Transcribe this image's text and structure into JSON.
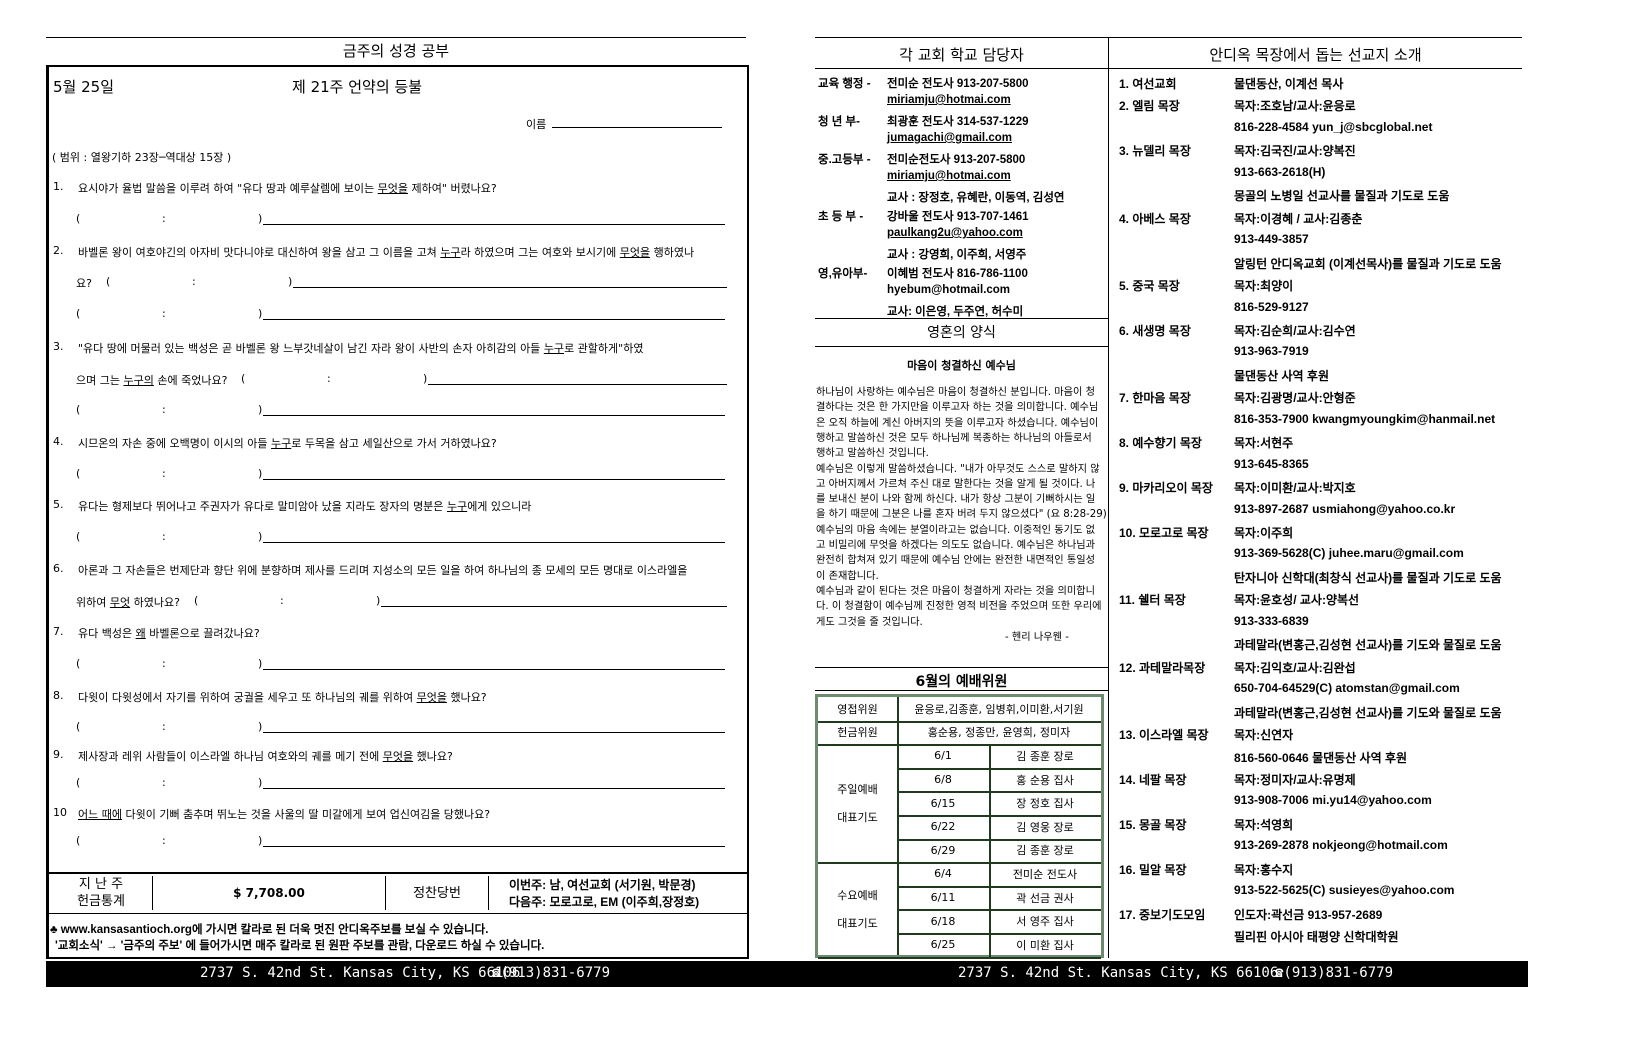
{
  "left": {
    "section_title": "금주의 성경 공부",
    "date": "5월 25일",
    "lesson_title": "제 21주 언약의 등불",
    "name_label": "이름",
    "scope": "( 범위 : 열왕기하 23장─역대상 15장 )",
    "answer": {
      "open": "(",
      "colon": ":",
      "close": ")"
    },
    "questions": [
      {
        "num": "1.",
        "lines": [
          {
            "segs": [
              [
                "요시야가 율법 말씀을 이루려 하여 \"유다 땅과 예루살렘에 보이는 ",
                false
              ],
              [
                "무엇을",
                true
              ],
              [
                " 제하여\" 버렸나요?",
                false
              ]
            ]
          }
        ],
        "answer_lines": 1
      },
      {
        "num": "2.",
        "lines": [
          {
            "segs": [
              [
                "바벨론 왕이 여호야긴의 아자비 맛다니야로 대신하여 왕을 삼고 그 이름을 고쳐 ",
                false
              ],
              [
                "누구",
                true
              ],
              [
                "라 하였으며 그는 여호와 보시기에 ",
                false
              ],
              [
                "무엇을",
                true
              ],
              [
                "  행하였나",
                false
              ]
            ]
          },
          {
            "segs": [
              [
                "요?",
                false
              ]
            ],
            "inline": true
          }
        ],
        "answer_lines": 1
      },
      {
        "num": "3.",
        "lines": [
          {
            "segs": [
              [
                "\"유다 땅에 머물러 있는 백성은 곧 바벨론 왕 느부갓네살이 남긴 자라 왕이 사반의 손자 아히감의 아들 ",
                false
              ],
              [
                "누구",
                true
              ],
              [
                "로 관할하게\"하였",
                false
              ]
            ]
          },
          {
            "segs": [
              [
                "으며 그는 ",
                false
              ],
              [
                "누구의",
                true
              ],
              [
                " 손에 죽었나요?",
                false
              ]
            ],
            "inline": true
          }
        ],
        "answer_lines": 1
      },
      {
        "num": "4.",
        "lines": [
          {
            "segs": [
              [
                "시므온의 자손 중에 오백명이 이시의 아들 ",
                false
              ],
              [
                "누구",
                true
              ],
              [
                "로 두목을 삼고 세일산으로 가서 거하였나요?",
                false
              ]
            ]
          }
        ],
        "answer_lines": 1
      },
      {
        "num": "5.",
        "lines": [
          {
            "segs": [
              [
                "유다는 형제보다 뛰어나고 주권자가 유다로 말미암아 났을 지라도 장자의 명분은 ",
                false
              ],
              [
                "누구",
                true
              ],
              [
                "에게 있으니라",
                false
              ]
            ]
          }
        ],
        "answer_lines": 1
      },
      {
        "num": "6.",
        "lines": [
          {
            "segs": [
              [
                "아론과 그 자손들은 번제단과 향단 위에 분향하며 제사를 드리며 지성소의 모든 일을 하여 하나님의 종 모세의 모든 명대로 이스라엘을",
                false
              ]
            ]
          },
          {
            "segs": [
              [
                "위하여 ",
                false
              ],
              [
                "무엇",
                true
              ],
              [
                " 하였나요?",
                false
              ]
            ],
            "inline": true
          }
        ],
        "answer_lines": 0
      },
      {
        "num": "7.",
        "lines": [
          {
            "segs": [
              [
                "유다 백성은 ",
                false
              ],
              [
                "왜",
                true
              ],
              [
                " 바벨론으로 끌려갔나요?",
                false
              ]
            ]
          }
        ],
        "answer_lines": 1
      },
      {
        "num": "8.",
        "lines": [
          {
            "segs": [
              [
                "다윗이 다윗성에서 자기를 위하여 궁궐을 세우고 또 하나님의 궤를 위하여 ",
                false
              ],
              [
                "무엇을",
                true
              ],
              [
                " 했나요?",
                false
              ]
            ]
          }
        ],
        "answer_lines": 1
      },
      {
        "num": "9.",
        "lines": [
          {
            "segs": [
              [
                "제사장과 레위 사람들이 이스라엘 하나님 여호와의 궤를 메기 전에 ",
                false
              ],
              [
                "무엇을",
                true
              ],
              [
                " 했나요?",
                false
              ]
            ]
          }
        ],
        "answer_lines": 1
      },
      {
        "num": "10",
        "lines": [
          {
            "segs": [
              [
                "어느 때에",
                true
              ],
              [
                " 다윗이 기뻐 춤추며 뛰노는 것을 사울의 딸 미갈에게 보여 업신여김을 당했나요?",
                false
              ]
            ]
          }
        ],
        "answer_lines": 1
      }
    ],
    "summary": {
      "offering_label_1": "지 난 주",
      "offering_label_2": "헌금통계",
      "offering_amount": "$ 7,708.00",
      "meal_label": "정찬당번",
      "this_week": "이번주: 남, 여선교회 (서기원, 박문경)",
      "next_week": "다음주: 모로고로, EM  (이주희,장정호)"
    },
    "notes": [
      "♣ www.kansasantioch.org에 가시면 칼라로 된 더욱 멋진 안디옥주보를 보실 수 있습니다.",
      "'교회소식' →  '금주의 주보' 에 들어가시면 매주 칼라로 된 원판 주보를 관람, 다운로드 하실 수 있습니다."
    ]
  },
  "middle": {
    "staff_title": "각 교회 학교 담당자",
    "staff": [
      [
        "교육 행정 -",
        "전미순 전도사 913-207-5800",
        false
      ],
      [
        "",
        "miriamju@hotmai.com",
        true
      ],
      [
        "청  년 부-",
        "최광훈 전도사 314-537-1229",
        false
      ],
      [
        "",
        "jumagachi@gmail.com",
        true
      ],
      [
        "중.고등부 -",
        "전미순전도사 913-207-5800",
        false
      ],
      [
        "",
        "miriamju@hotmai.com",
        true
      ],
      [
        "",
        "교사 : 장정호, 유혜란, 이동역, 김성연",
        false
      ],
      [
        "초 등  부 -",
        "강바울 전도사  913-707-1461",
        false
      ],
      [
        "",
        "paulkang2u@yahoo.com",
        true
      ],
      [
        "",
        "교사 : 강영희, 이주희, 서영주",
        false
      ],
      [
        "영,유아부-",
        "이혜범 전도사 816-786-1100",
        false
      ],
      [
        "",
        "hyebum@hotmail.com",
        false
      ],
      [
        "",
        "교사: 이은영, 두주연, 허수미",
        false
      ]
    ],
    "devotion_title": "영혼의 양식",
    "devotion_subtitle": "마음이 청결하신 예수님",
    "devotion_lines": [
      "하나님이 사랑하는 예수님은 마음이 청결하신 분입니다. 마음이 청",
      "결하다는 것은 한 가지만을 이루고자 하는 것을 의미합니다. 예수님",
      "은 오직 하늘에 계신 아버지의 뜻을 이루고자 하셨습니다. 예수님이",
      "행하고 말씀하신 것은 모두 하나님께 복종하는 하나님의 아들로서",
      "행하고 말씀하신 것입니다.",
      "예수님은 이렇게 말씀하셨습니다. \"내가 아무것도 스스로 말하지 않",
      "고 아버지께서 가르쳐 주신 대로 말한다는 것을 알게 될 것이다. 나",
      "를 보내신 분이 나와 함께 하신다. 내가 항상 그분이 기뻐하시는 일",
      "을 하기 때문에 그분은 나를 혼자 버려 두지 않으셨다\" (요 8:28-29)",
      "예수님의 마음 속에는 분열이라고는 없습니다. 이중적인 동기도 없",
      "고 비밀리에 무엇을 하겠다는 의도도 없습니다. 예수님은 하나님과",
      "완전히 합쳐져 있기 때문에 예수님 안에는 완전한 내면적인 통일성",
      "이 존재합니다.",
      "예수님과 같이 된다는 것은 마음이 청결하게 자라는 것을 의미합니",
      "다. 이 청결함이 예수님께 진정한 영적 비전을 주었으며 또한 우리에",
      "게도 그것을 줄 것입니다."
    ],
    "devotion_author": "- 헨리 나우웬 -",
    "schedule_title": "6월의 예배위원",
    "usher_label": "영접위원",
    "ushers": "윤응로,김종훈, 임병휘,이미환,서기원",
    "offering_label": "헌금위원",
    "offering_members": "홍순용, 정종만, 윤영희, 정미자",
    "sunday_label_1": "주일예배",
    "sunday_label_2": "대표기도",
    "sunday": [
      [
        "6/1",
        "김 종훈 장로"
      ],
      [
        "6/8",
        "홍 순용 집사"
      ],
      [
        "6/15",
        "장 정호 집사"
      ],
      [
        "6/22",
        "김 영웅 장로"
      ],
      [
        "6/29",
        "김 종훈 장로"
      ]
    ],
    "wednesday_label_1": "수요예배",
    "wednesday_label_2": "대표기도",
    "wednesday": [
      [
        "6/4",
        "전미순 전도사"
      ],
      [
        "6/11",
        "곽 선금 권사"
      ],
      [
        "6/18",
        "서 영주 집사"
      ],
      [
        "6/25",
        "이 미환 집사"
      ]
    ]
  },
  "right": {
    "title": "안디옥 목장에서 돕는 선교지 소개",
    "rows": [
      [
        "1. 여선교회",
        "물댄동산, 이계선 목사"
      ],
      [
        "2. 엘림 목장",
        "목자:조호남/교사:윤응로"
      ],
      [
        "",
        "816-228-4584 yun_j@sbcglobal.net"
      ],
      [
        "3. 뉴델리 목장",
        "목자:김국진/교사:양복진"
      ],
      [
        "",
        "913-663-2618(H)"
      ],
      [
        "",
        "몽골의 노병일 선교사를 물질과 기도로 도움"
      ],
      [
        "4. 아베스 목장",
        "목자:이경혜 / 교사:김종춘"
      ],
      [
        "",
        "913-449-3857"
      ],
      [
        "",
        "알링턴 안디옥교회 (이계선목사)를 물질과 기도로 도움"
      ],
      [
        "5. 중국 목장",
        "목자:최양이"
      ],
      [
        "",
        "816-529-9127"
      ],
      [
        "6. 새생명 목장",
        "목자:김순희/교사:김수연"
      ],
      [
        "",
        "913-963-7919"
      ],
      [
        "",
        "물댄동산 사역 후원"
      ],
      [
        "7. 한마음 목장",
        "목자:김광명/교사:안형준"
      ],
      [
        "",
        "816-353-7900 kwangmyoungkim@hanmail.net"
      ],
      [
        "8. 예수향기 목장",
        "목자:서현주"
      ],
      [
        "",
        "913-645-8365"
      ],
      [
        "9. 마카리오이 목장",
        "목자:이미환/교사:박지호"
      ],
      [
        "",
        "913-897-2687 usmiahong@yahoo.co.kr"
      ],
      [
        "10. 모로고로 목장",
        "목자:이주희"
      ],
      [
        "",
        "913-369-5628(C) juhee.maru@gmail.com"
      ],
      [
        "",
        "탄자니아 신학대(최창식 선교사)를 물질과 기도로 도움"
      ],
      [
        "11. 쉘터 목장",
        "목자:윤호성/ 교사:양복선"
      ],
      [
        "",
        "913-333-6839"
      ],
      [
        "",
        "과테말라(변홍근,김성현 선교사)를 기도와 물질로 도움"
      ],
      [
        "12. 과테말라목장",
        "목자:김익호/교사:김완섭"
      ],
      [
        "",
        " 650-704-64529(C) atomstan@gmail.com"
      ],
      [
        "",
        "과테말라(변홍근,김성현 선교사)를 기도와 물질로 도움"
      ],
      [
        "13. 이스라엘 목장",
        "목자:신연자"
      ],
      [
        "",
        " 816-560-0646  물댄동산 사역 후원"
      ],
      [
        "14. 네팔 목장",
        "목자:정미자/교사:유명제"
      ],
      [
        "",
        " 913-908-7006  mi.yu14@yahoo.com"
      ],
      [
        "15. 몽골 목장",
        "목자:석영희"
      ],
      [
        "",
        " 913-269-2878 nokjeong@hotmail.com"
      ],
      [
        "16. 밀알 목장",
        "목자:홍수지"
      ],
      [
        "",
        " 913-522-5625(C) susieyes@yahoo.com"
      ],
      [
        "17. 중보기도모임",
        "인도자:곽선금 913-957-2689"
      ],
      [
        "",
        " 필리핀 아시아 태평양 신학대학원"
      ]
    ]
  },
  "footer": {
    "address": "2737 S. 42nd St. Kansas City, KS 66106",
    "phone": "☎(913)831-6779",
    "phone_icon": "telephone-icon"
  }
}
